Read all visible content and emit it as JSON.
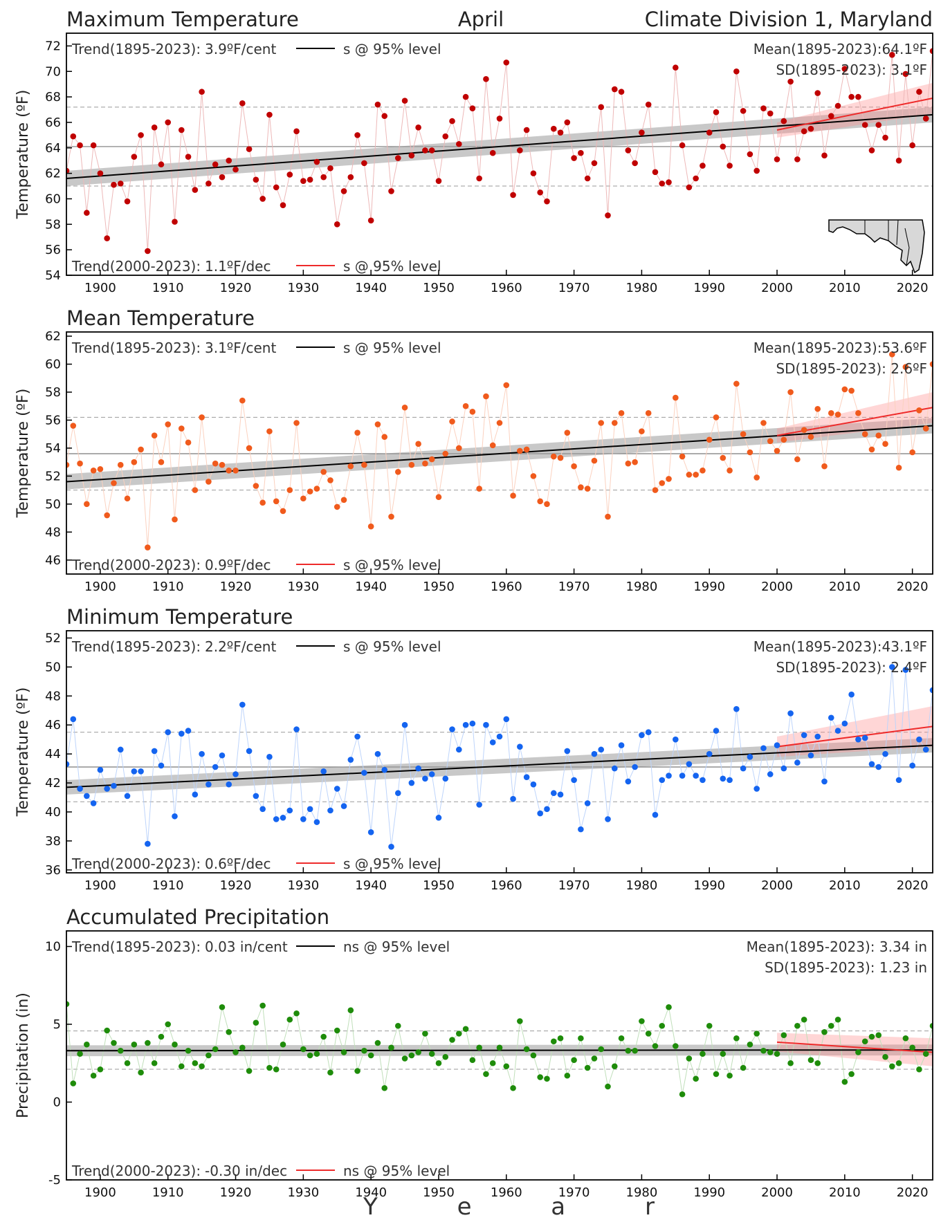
{
  "header": {
    "title_left": "Maximum Temperature",
    "title_center": "April",
    "title_right": "Climate Division 1, Maryland"
  },
  "x_axis_label": "Y e a r",
  "x_tick_labels": [
    "1900",
    "1910",
    "1920",
    "1930",
    "1940",
    "1950",
    "1960",
    "1970",
    "1980",
    "1990",
    "2000",
    "2010",
    "2020"
  ],
  "panels": [
    {
      "title": "Maximum Temperature",
      "ylabel": "Temperature (ºF)",
      "ann_trend_long_label": "Trend(1895-2023):",
      "ann_trend_long_value": "3.9ºF/cent",
      "ann_trend_long_sig": "s @ 95% level",
      "ann_trend_short_label": "Trend(2000-2023):",
      "ann_trend_short_value": "1.1ºF/dec",
      "ann_trend_short_sig": "s @ 95% level",
      "ann_mean": "Mean(1895-2023):64.1ºF",
      "ann_sd": "SD(1895-2023): 3.1ºF"
    },
    {
      "title": "Mean Temperature",
      "ylabel": "Temperature (ºF)",
      "ann_trend_long_label": "Trend(1895-2023):",
      "ann_trend_long_value": "3.1ºF/cent",
      "ann_trend_long_sig": "s @ 95% level",
      "ann_trend_short_label": "Trend(2000-2023):",
      "ann_trend_short_value": "0.9ºF/dec",
      "ann_trend_short_sig": "s @ 95% level",
      "ann_mean": "Mean(1895-2023):53.6ºF",
      "ann_sd": "SD(1895-2023): 2.6ºF"
    },
    {
      "title": "Minimum Temperature",
      "ylabel": "Temperature (ºF)",
      "ann_trend_long_label": "Trend(1895-2023):",
      "ann_trend_long_value": "2.2ºF/cent",
      "ann_trend_long_sig": "s @ 95% level",
      "ann_trend_short_label": "Trend(2000-2023):",
      "ann_trend_short_value": "0.6ºF/dec",
      "ann_trend_short_sig": "s @ 95% level",
      "ann_mean": "Mean(1895-2023):43.1ºF",
      "ann_sd": "SD(1895-2023): 2.4ºF"
    },
    {
      "title": "Accumulated Precipitation",
      "ylabel": "Precipitation (in)",
      "ann_trend_long_label": "Trend(1895-2023):",
      "ann_trend_long_value": "0.03 in/cent",
      "ann_trend_long_sig": "ns @ 95% level",
      "ann_trend_short_label": "Trend(2000-2023):",
      "ann_trend_short_value": "-0.30 in/dec",
      "ann_trend_short_sig": "ns @ 95% level",
      "ann_mean": "Mean(1895-2023): 3.34 in",
      "ann_sd": "SD(1895-2023): 1.23 in"
    }
  ],
  "chart_data": [
    {
      "type": "scatter",
      "title": "Maximum Temperature",
      "ylabel": "Temperature (ºF)",
      "xlim": [
        1895,
        2023
      ],
      "ylim": [
        54,
        73
      ],
      "yticks": [
        54,
        56,
        58,
        60,
        62,
        64,
        66,
        68,
        70,
        72
      ],
      "grid": false,
      "color": "#c00000",
      "mean": 64.1,
      "sd": 3.1,
      "trend_long": {
        "start": [
          1895,
          61.6
        ],
        "end": [
          2023,
          66.6
        ],
        "ci": 0.6
      },
      "trend_short": {
        "start": [
          2000,
          65.4
        ],
        "end": [
          2023,
          67.9
        ],
        "ci_start": 0.6,
        "ci_end": 1.2
      },
      "x_start": 1895,
      "values": [
        62.2,
        64.9,
        64.2,
        58.9,
        64.2,
        62.0,
        56.9,
        61.1,
        61.2,
        59.8,
        63.3,
        65.0,
        55.9,
        65.6,
        62.7,
        66.0,
        58.2,
        65.4,
        63.3,
        60.7,
        68.4,
        61.2,
        62.7,
        61.7,
        63.0,
        62.3,
        67.5,
        63.9,
        61.5,
        60.0,
        66.6,
        60.9,
        59.5,
        61.9,
        65.3,
        61.4,
        61.5,
        62.9,
        61.7,
        62.4,
        58.0,
        60.6,
        61.7,
        65.0,
        62.8,
        58.3,
        67.4,
        66.5,
        60.6,
        63.2,
        67.7,
        63.4,
        65.6,
        63.8,
        63.8,
        61.4,
        64.9,
        66.1,
        64.3,
        68.0,
        67.1,
        61.6,
        69.4,
        63.6,
        66.3,
        70.7,
        60.3,
        63.8,
        65.4,
        62.0,
        60.5,
        59.8,
        65.5,
        65.2,
        66.0,
        63.2,
        63.6,
        61.6,
        62.8,
        67.2,
        58.7,
        68.6,
        68.4,
        63.8,
        62.8,
        65.2,
        67.4,
        62.1,
        61.2,
        61.3,
        70.3,
        64.2,
        60.9,
        61.6,
        62.6,
        65.2,
        66.8,
        64.1,
        62.6,
        70.0,
        66.9,
        63.5,
        62.2,
        67.1,
        66.7,
        63.1,
        66.1,
        69.2,
        63.1,
        65.3,
        65.5,
        68.3,
        63.4,
        66.5,
        67.3,
        70.2,
        68.0,
        68.0,
        65.8,
        63.8,
        65.8,
        64.8,
        71.3,
        63.0,
        69.8,
        64.2,
        68.4,
        66.3,
        71.6
      ]
    },
    {
      "type": "scatter",
      "title": "Mean Temperature",
      "ylabel": "Temperature (ºF)",
      "xlim": [
        1895,
        2023
      ],
      "ylim": [
        45,
        62.3
      ],
      "yticks": [
        46,
        48,
        50,
        52,
        54,
        56,
        58,
        60,
        62
      ],
      "grid": false,
      "color": "#f05a1c",
      "mean": 53.6,
      "sd": 2.6,
      "trend_long": {
        "start": [
          1895,
          51.6
        ],
        "end": [
          2023,
          55.6
        ],
        "ci": 0.55
      },
      "trend_short": {
        "start": [
          2000,
          54.9
        ],
        "end": [
          2023,
          56.9
        ],
        "ci_start": 0.5,
        "ci_end": 1.1
      },
      "x_start": 1895,
      "values": [
        52.8,
        55.6,
        52.9,
        50.0,
        52.4,
        52.5,
        49.2,
        51.5,
        52.8,
        50.4,
        53.0,
        53.9,
        46.9,
        54.9,
        53.0,
        55.7,
        48.9,
        55.4,
        54.4,
        51.0,
        56.2,
        51.6,
        52.9,
        52.8,
        52.4,
        52.4,
        57.4,
        54.0,
        51.3,
        50.1,
        55.2,
        50.2,
        49.5,
        51.0,
        55.8,
        50.4,
        50.9,
        51.1,
        52.3,
        51.7,
        49.8,
        50.3,
        52.7,
        55.1,
        52.8,
        48.4,
        55.7,
        54.8,
        49.1,
        52.3,
        56.9,
        52.8,
        54.3,
        52.9,
        53.2,
        50.5,
        53.6,
        55.9,
        54.0,
        57.0,
        56.6,
        51.1,
        57.7,
        54.2,
        55.8,
        58.5,
        50.6,
        53.8,
        53.9,
        52.0,
        50.2,
        50.0,
        53.4,
        53.3,
        55.1,
        52.7,
        51.2,
        51.1,
        53.1,
        55.8,
        49.1,
        55.8,
        56.5,
        52.9,
        53.0,
        55.2,
        56.5,
        51.0,
        51.5,
        51.8,
        57.6,
        53.4,
        52.1,
        52.1,
        52.4,
        54.6,
        56.2,
        53.3,
        52.4,
        58.6,
        55.0,
        53.7,
        51.9,
        55.8,
        54.5,
        53.8,
        54.6,
        58.0,
        53.2,
        55.3,
        54.8,
        56.8,
        52.7,
        56.5,
        56.4,
        58.2,
        58.1,
        56.5,
        55.0,
        53.9,
        54.9,
        54.3,
        60.7,
        52.6,
        59.8,
        53.7,
        56.7,
        55.4,
        60.0
      ]
    },
    {
      "type": "scatter",
      "title": "Minimum Temperature",
      "ylabel": "Temperature (ºF)",
      "xlim": [
        1895,
        2023
      ],
      "ylim": [
        35.8,
        52.5
      ],
      "yticks": [
        36,
        38,
        40,
        42,
        44,
        46,
        48,
        50,
        52
      ],
      "grid": false,
      "color": "#1464f0",
      "mean": 43.1,
      "sd": 2.4,
      "trend_long": {
        "start": [
          1895,
          41.7
        ],
        "end": [
          2023,
          44.6
        ],
        "ci": 0.5
      },
      "trend_short": {
        "start": [
          2000,
          44.5
        ],
        "end": [
          2023,
          45.9
        ],
        "ci_start": 0.7,
        "ci_end": 1.4
      },
      "x_start": 1895,
      "values": [
        43.3,
        46.4,
        41.6,
        41.1,
        40.6,
        42.9,
        41.6,
        41.8,
        44.3,
        41.1,
        42.8,
        42.8,
        37.8,
        44.2,
        43.2,
        45.5,
        39.7,
        45.4,
        45.6,
        41.2,
        44.0,
        41.9,
        43.1,
        43.9,
        41.9,
        42.6,
        47.4,
        44.2,
        41.1,
        40.2,
        43.8,
        39.5,
        39.6,
        40.1,
        45.7,
        39.5,
        40.2,
        39.3,
        42.8,
        40.1,
        41.6,
        40.4,
        43.6,
        45.2,
        42.7,
        38.6,
        44.0,
        42.9,
        37.6,
        41.3,
        46.0,
        42.0,
        43.0,
        42.3,
        42.6,
        39.6,
        42.3,
        45.7,
        44.3,
        46.0,
        46.1,
        40.5,
        46.0,
        44.8,
        45.2,
        46.4,
        40.9,
        44.5,
        42.4,
        41.9,
        39.9,
        40.2,
        41.3,
        41.2,
        44.2,
        42.2,
        38.8,
        40.6,
        44.0,
        44.3,
        39.5,
        43.0,
        44.6,
        42.1,
        43.1,
        45.3,
        45.5,
        39.8,
        42.2,
        42.5,
        45.0,
        42.5,
        43.3,
        42.5,
        42.2,
        44.0,
        45.6,
        42.3,
        42.2,
        47.1,
        43.0,
        43.8,
        41.6,
        44.4,
        42.6,
        44.6,
        43.0,
        46.8,
        43.4,
        45.3,
        43.9,
        45.2,
        42.1,
        46.5,
        45.6,
        46.1,
        48.1,
        45.0,
        45.1,
        43.3,
        43.1,
        44.0,
        50.0,
        42.2,
        49.8,
        43.2,
        45.0,
        44.3,
        48.4
      ]
    },
    {
      "type": "scatter",
      "title": "Accumulated Precipitation",
      "ylabel": "Precipitation (in)",
      "xlim": [
        1895,
        2023
      ],
      "ylim": [
        -5,
        11
      ],
      "yticks": [
        -5,
        0,
        5,
        10
      ],
      "grid": false,
      "color": "#1e8c0a",
      "mean": 3.34,
      "sd": 1.23,
      "trend_long": {
        "start": [
          1895,
          3.3
        ],
        "end": [
          2023,
          3.35
        ],
        "ci": 0.35
      },
      "trend_short": {
        "start": [
          2000,
          3.85
        ],
        "end": [
          2023,
          3.2
        ],
        "ci_start": 0.6,
        "ci_end": 0.9
      },
      "x_start": 1895,
      "values": [
        6.3,
        1.2,
        3.1,
        3.7,
        1.7,
        2.1,
        4.6,
        3.8,
        3.3,
        2.5,
        3.7,
        1.9,
        3.8,
        2.5,
        4.2,
        5.0,
        3.7,
        2.3,
        3.3,
        2.5,
        2.3,
        3.0,
        3.4,
        6.1,
        4.5,
        3.2,
        3.5,
        2.0,
        5.1,
        6.2,
        2.2,
        2.1,
        3.7,
        5.3,
        5.7,
        3.4,
        3.0,
        3.1,
        4.2,
        1.9,
        4.6,
        3.2,
        5.9,
        2.0,
        3.3,
        3.0,
        3.8,
        0.9,
        3.5,
        4.9,
        2.8,
        3.0,
        3.2,
        4.4,
        3.1,
        2.5,
        2.9,
        4.0,
        4.4,
        4.7,
        2.7,
        3.5,
        1.8,
        2.5,
        3.5,
        2.3,
        0.9,
        5.2,
        3.4,
        3.0,
        1.6,
        1.5,
        3.9,
        4.1,
        1.7,
        2.7,
        4.1,
        2.2,
        2.8,
        3.4,
        1.0,
        2.3,
        4.1,
        3.3,
        3.3,
        5.2,
        4.4,
        3.6,
        4.9,
        6.1,
        3.6,
        0.5,
        2.8,
        1.5,
        3.1,
        4.9,
        1.8,
        3.1,
        1.7,
        4.1,
        2.2,
        3.7,
        4.4,
        3.3,
        3.2,
        3.1,
        4.3,
        2.5,
        4.9,
        5.3,
        2.7,
        2.5,
        4.5,
        4.9,
        5.3,
        1.3,
        1.8,
        3.2,
        3.9,
        4.2,
        4.3,
        2.9,
        2.3,
        2.5,
        4.1,
        3.5,
        2.1,
        3.1,
        4.9
      ]
    }
  ]
}
